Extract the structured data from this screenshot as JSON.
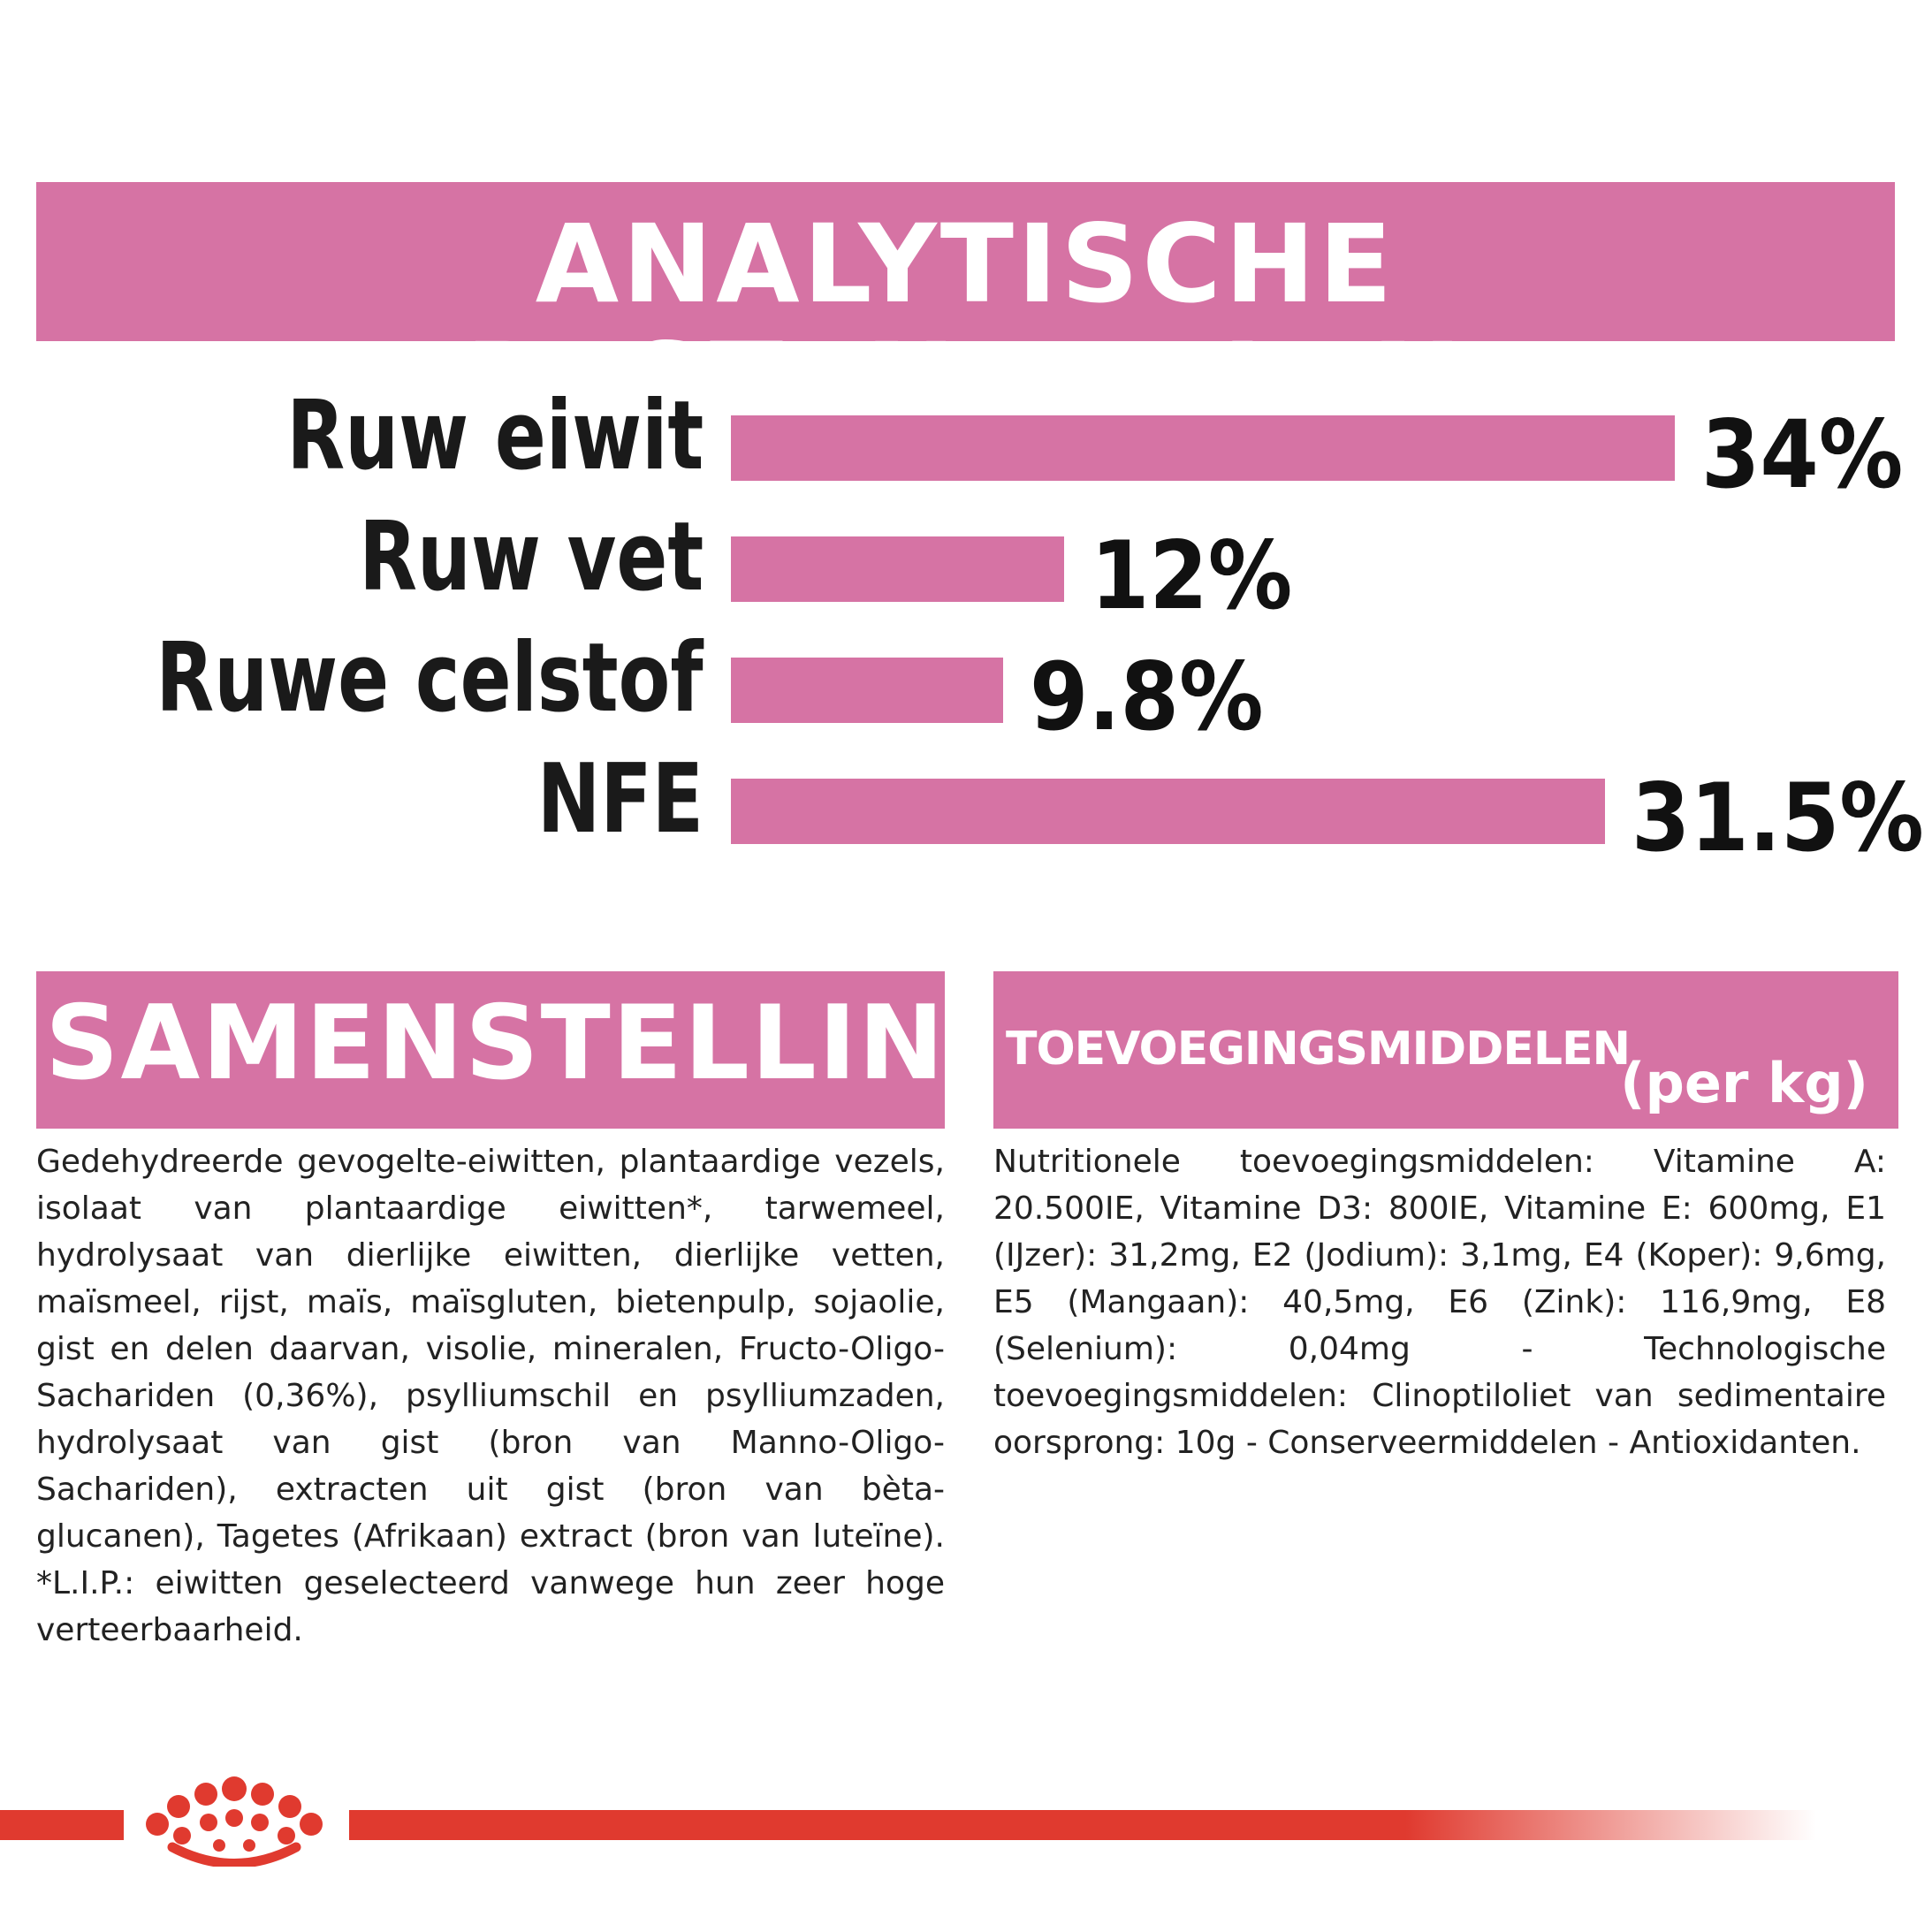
{
  "header": {
    "title": "ANALYTISCHE BESTANDDELEN"
  },
  "chart_data": {
    "type": "bar",
    "orientation": "horizontal",
    "categories": [
      "Ruw eiwit",
      "Ruw vet",
      "Ruwe celstof",
      "NFE"
    ],
    "values": [
      34,
      12,
      9.8,
      31.5
    ],
    "value_labels": [
      "34%",
      "12%",
      "9.8%",
      "31.5%"
    ],
    "unit": "%",
    "xlim": [
      0,
      34
    ],
    "grid": false,
    "bar_color": "#d673a4"
  },
  "samenstelling": {
    "title": "SAMENSTELLING",
    "text": "Gedehydreerde gevogelte-eiwitten, plantaardige vezels, isolaat van plantaardige eiwitten*, tarwemeel, hydrolysaat van dierlijke eiwitten, dierlijke vetten, maïsmeel, rijst, maïs, maïsgluten, bietenpulp, sojaolie, gist en delen daarvan, visolie, mineralen, Fructo-Oligo-Sachariden (0,36%), psylliumschil en psylliumzaden, hydrolysaat van gist (bron van Manno-Oligo-Sachariden), extracten uit gist (bron van bèta-glucanen), Tagetes (Afrikaan) extract (bron van luteïne). *L.I.P.: eiwitten geselecteerd vanwege hun zeer hoge verteerbaarheid."
  },
  "toevoegingsmiddelen": {
    "title": "TOEVOEGINGSMIDDELEN",
    "unit": "(per kg)",
    "text": "Nutritionele toevoegingsmiddelen: Vitamine A: 20.500IE, Vitamine D3: 800IE, Vitamine E: 600mg, E1 (IJzer): 31,2mg, E2 (Jodium): 3,1mg, E4 (Koper): 9,6mg, E5 (Mangaan): 40,5mg, E6 (Zink): 116,9mg, E8 (Selenium): 0,04mg - Technologische toevoegingsmiddelen: Clinoptiloliet van sedimentaire oorsprong: 10g - Conserveermiddelen - Antioxidanten."
  },
  "colors": {
    "accent": "#d673a4",
    "brand_red": "#e03a2f"
  },
  "logo": {
    "icon": "crown-logo-icon"
  }
}
